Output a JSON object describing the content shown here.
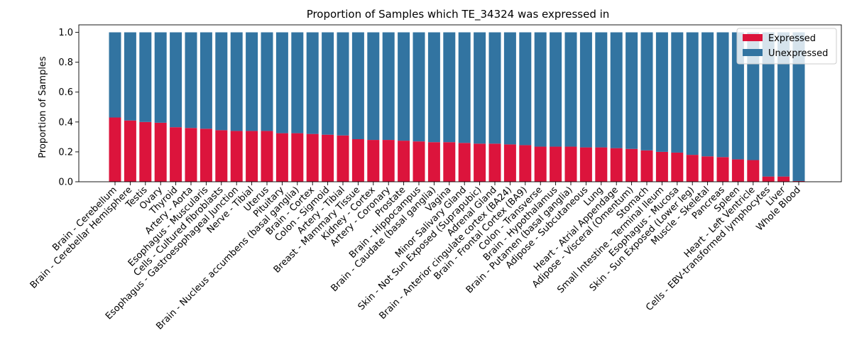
{
  "chart_data": {
    "type": "bar",
    "stacked": true,
    "title": "Proportion of Samples which TE_34324 was expressed in",
    "xlabel": "",
    "ylabel": "Proportion of Samples",
    "ylim": [
      0,
      1.05
    ],
    "yticks": [
      "0.0",
      "0.2",
      "0.4",
      "0.6",
      "0.8",
      "1.0"
    ],
    "legend_position": "top-right",
    "categories": [
      "Brain - Cerebellum",
      "Brain - Cerebellar Hemisphere",
      "Testis",
      "Ovary",
      "Thyroid",
      "Artery - Aorta",
      "Esophagus - Muscularis",
      "Cells - Cultured fibroblasts",
      "Esophagus - Gastroesophageal Junction",
      "Nerve - Tibial",
      "Uterus",
      "Pituitary",
      "Brain - Nucleus accumbens (basal ganglia)",
      "Brain - Cortex",
      "Colon - Sigmoid",
      "Artery - Tibial",
      "Breast - Mammary Tissue",
      "Kidney - Cortex",
      "Artery - Coronary",
      "Prostate",
      "Brain - Hippocampus",
      "Brain - Caudate (basal ganglia)",
      "Vagina",
      "Minor Salivary Gland",
      "Skin - Not Sun Exposed (Suprapubic)",
      "Adrenal Gland",
      "Brain - Anterior cingulate cortex (BA24)",
      "Brain - Frontal Cortex (BA9)",
      "Colon - Transverse",
      "Brain - Hypothalamus",
      "Brain - Putamen (basal ganglia)",
      "Adipose - Subcutaneous",
      "Lung",
      "Heart - Atrial Appendage",
      "Adipose - Visceral (Omentum)",
      "Stomach",
      "Small Intestine - Terminal Ileum",
      "Esophagus - Mucosa",
      "Skin - Sun Exposed (Lower leg)",
      "Muscle - Skeletal",
      "Pancreas",
      "Spleen",
      "Heart - Left Ventricle",
      "Cells - EBV-transformed lymphocytes",
      "Liver",
      "Whole Blood"
    ],
    "series": [
      {
        "name": "Expressed",
        "color": "#dc143c",
        "values": [
          0.43,
          0.41,
          0.4,
          0.395,
          0.365,
          0.36,
          0.355,
          0.345,
          0.34,
          0.34,
          0.34,
          0.325,
          0.325,
          0.32,
          0.315,
          0.31,
          0.285,
          0.28,
          0.28,
          0.275,
          0.27,
          0.265,
          0.265,
          0.26,
          0.255,
          0.255,
          0.25,
          0.245,
          0.235,
          0.235,
          0.235,
          0.23,
          0.23,
          0.225,
          0.22,
          0.21,
          0.2,
          0.195,
          0.18,
          0.17,
          0.165,
          0.15,
          0.145,
          0.035,
          0.035,
          0.005
        ]
      },
      {
        "name": "Unexpressed",
        "color": "#3274a1",
        "values": [
          0.57,
          0.59,
          0.6,
          0.605,
          0.635,
          0.64,
          0.645,
          0.655,
          0.66,
          0.66,
          0.66,
          0.675,
          0.675,
          0.68,
          0.685,
          0.69,
          0.715,
          0.72,
          0.72,
          0.725,
          0.73,
          0.735,
          0.735,
          0.74,
          0.745,
          0.745,
          0.75,
          0.755,
          0.765,
          0.765,
          0.765,
          0.77,
          0.77,
          0.775,
          0.78,
          0.79,
          0.8,
          0.805,
          0.82,
          0.83,
          0.835,
          0.85,
          0.855,
          0.965,
          0.965,
          0.995
        ]
      }
    ]
  }
}
